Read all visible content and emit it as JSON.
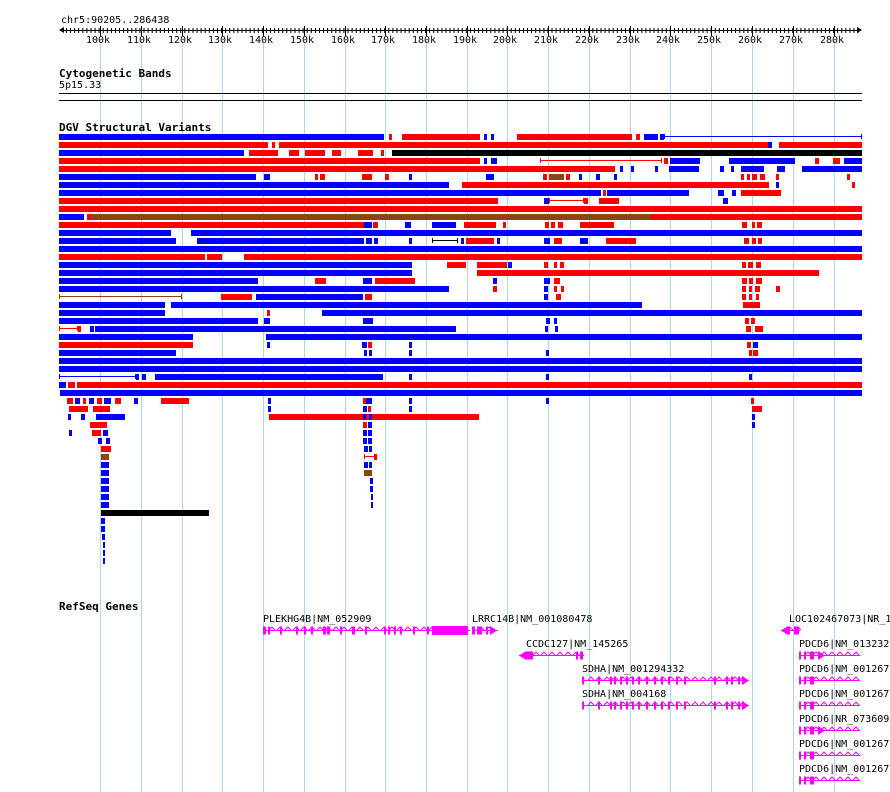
{
  "location": "chr5:90205..286438",
  "ruler": {
    "ticks": [
      "100k",
      "110k",
      "120k",
      "130k",
      "140k",
      "150k",
      "160k",
      "170k",
      "180k",
      "190k",
      "200k",
      "210k",
      "220k",
      "230k",
      "240k",
      "250k",
      "260k",
      "270k",
      "280k"
    ]
  },
  "tracks": {
    "cytobands": {
      "title": "Cytogenetic Bands",
      "band": "5p15.33"
    },
    "dgv": {
      "title": "DGV Structural Variants"
    },
    "refseq": {
      "title": "RefSeq Genes",
      "genes": [
        {
          "label": "PLEKHG4B|NM_052909"
        },
        {
          "label": "LRRC14B|NM_001080478"
        },
        {
          "label": "CCDC127|NM_145265"
        },
        {
          "label": "SDHA|NM_001294332"
        },
        {
          "label": "SDHA|NM_004168"
        },
        {
          "label": "LOC102467073|NR_1"
        },
        {
          "label": "PDCD6|NM_013232"
        },
        {
          "label": "PDCD6|NM_001267"
        },
        {
          "label": "PDCD6|NM_001267"
        },
        {
          "label": "PDCD6|NR_073609"
        },
        {
          "label": "PDCD6|NM_001267"
        },
        {
          "label": "PDCD6|NM_001267"
        }
      ]
    }
  },
  "colors": {
    "gain": "#ff0000",
    "loss": "#0000ff",
    "both": "#8b4513",
    "other": "#000000",
    "gene": "#ff00ff",
    "grid": "#add8e6"
  }
}
